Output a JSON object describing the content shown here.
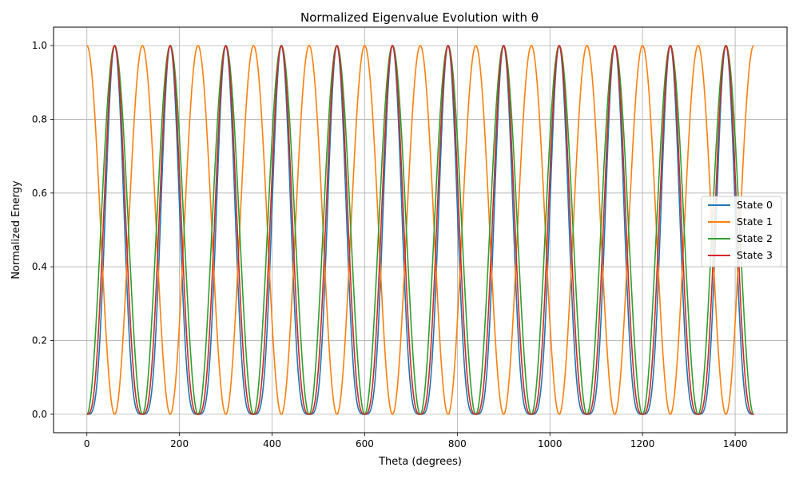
{
  "chart_data": {
    "type": "line",
    "title": "Normalized Eigenvalue Evolution with θ",
    "xlabel": "Theta (degrees)",
    "ylabel": "Normalized Energy",
    "xlim": [
      -72,
      1512
    ],
    "ylim": [
      -0.05,
      1.05
    ],
    "xticks": [
      0,
      200,
      400,
      600,
      800,
      1000,
      1200,
      1400
    ],
    "yticks": [
      0.0,
      0.2,
      0.4,
      0.6,
      0.8,
      1.0
    ],
    "xtick_labels": [
      "0",
      "200",
      "400",
      "600",
      "800",
      "1000",
      "1200",
      "1400"
    ],
    "ytick_labels": [
      "0.0",
      "0.2",
      "0.4",
      "0.6",
      "0.8",
      "1.0"
    ],
    "grid": true,
    "legend_position": "center-right",
    "x_range": [
      0,
      1440
    ],
    "series": [
      {
        "name": "State 0",
        "color": "#1f77b4",
        "function": "sin(1.5*theta)^4",
        "note_values": {
          "peaks_at": [
            60,
            180,
            300,
            420,
            540,
            660,
            780,
            900,
            1020,
            1140,
            1260,
            1380
          ],
          "zeros_at": [
            0,
            120,
            240,
            360,
            480,
            600,
            720,
            840,
            960,
            1080,
            1200,
            1320,
            1440
          ]
        }
      },
      {
        "name": "State 1",
        "color": "#ff7f0e",
        "function": "cos(1.5*theta)^2",
        "note_values": {
          "peaks_at": [
            0,
            120,
            240,
            360,
            480,
            600,
            720,
            840,
            960,
            1080,
            1200,
            1320,
            1440
          ],
          "zeros_at": [
            60,
            180,
            300,
            420,
            540,
            660,
            780,
            900,
            1020,
            1140,
            1260,
            1380
          ]
        }
      },
      {
        "name": "State 2",
        "color": "#2ca02c",
        "function": "sin(1.5*theta)^2",
        "note_values": {
          "peaks_at": [
            60,
            180,
            300,
            420,
            540,
            660,
            780,
            900,
            1020,
            1140,
            1260,
            1380
          ],
          "zeros_at": [
            0,
            120,
            240,
            360,
            480,
            600,
            720,
            840,
            960,
            1080,
            1200,
            1320,
            1440
          ]
        }
      },
      {
        "name": "State 3",
        "color": "#d62728",
        "function": "sin(1.5*theta)^3 (abs)",
        "note_values": {
          "peaks_at": [
            60,
            180,
            300,
            420,
            540,
            660,
            780,
            900,
            1020,
            1140,
            1260,
            1380
          ],
          "zeros_at": [
            0,
            120,
            240,
            360,
            480,
            600,
            720,
            840,
            960,
            1080,
            1200,
            1320,
            1440
          ]
        }
      }
    ]
  }
}
